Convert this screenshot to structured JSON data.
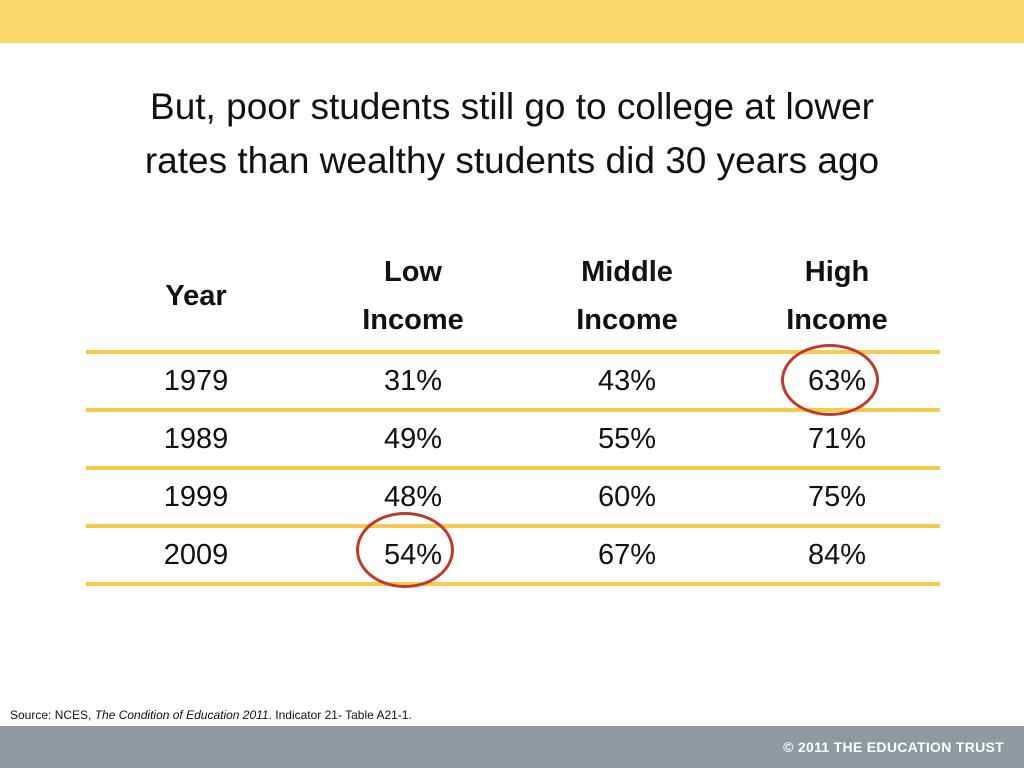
{
  "title": {
    "line1": "But, poor students still go to college at lower",
    "line2": "rates than wealthy students did 30 years ago"
  },
  "table": {
    "headers": {
      "year": "Year",
      "low": [
        "Low",
        "Income"
      ],
      "middle": [
        "Middle",
        "Income"
      ],
      "high": [
        "High",
        "Income"
      ]
    },
    "rows": [
      {
        "year": "1979",
        "low": "31%",
        "middle": "43%",
        "high": "63%"
      },
      {
        "year": "1989",
        "low": "49%",
        "middle": "55%",
        "high": "71%"
      },
      {
        "year": "1999",
        "low": "48%",
        "middle": "60%",
        "high": "75%"
      },
      {
        "year": "2009",
        "low": "54%",
        "middle": "67%",
        "high": "84%"
      }
    ]
  },
  "source": {
    "prefix": "Source: NCES, ",
    "publication": "The Condition of Education 2011",
    "suffix": ". Indicator 21- Table A21-1."
  },
  "footer": {
    "copyright": "© 2011 THE EDUCATION TRUST"
  },
  "colors": {
    "accent_bar": "#fcd86a",
    "table_rule": "#f8c94a",
    "highlight_circle": "#c0392b",
    "footer_bar": "#8e9aa0"
  }
}
